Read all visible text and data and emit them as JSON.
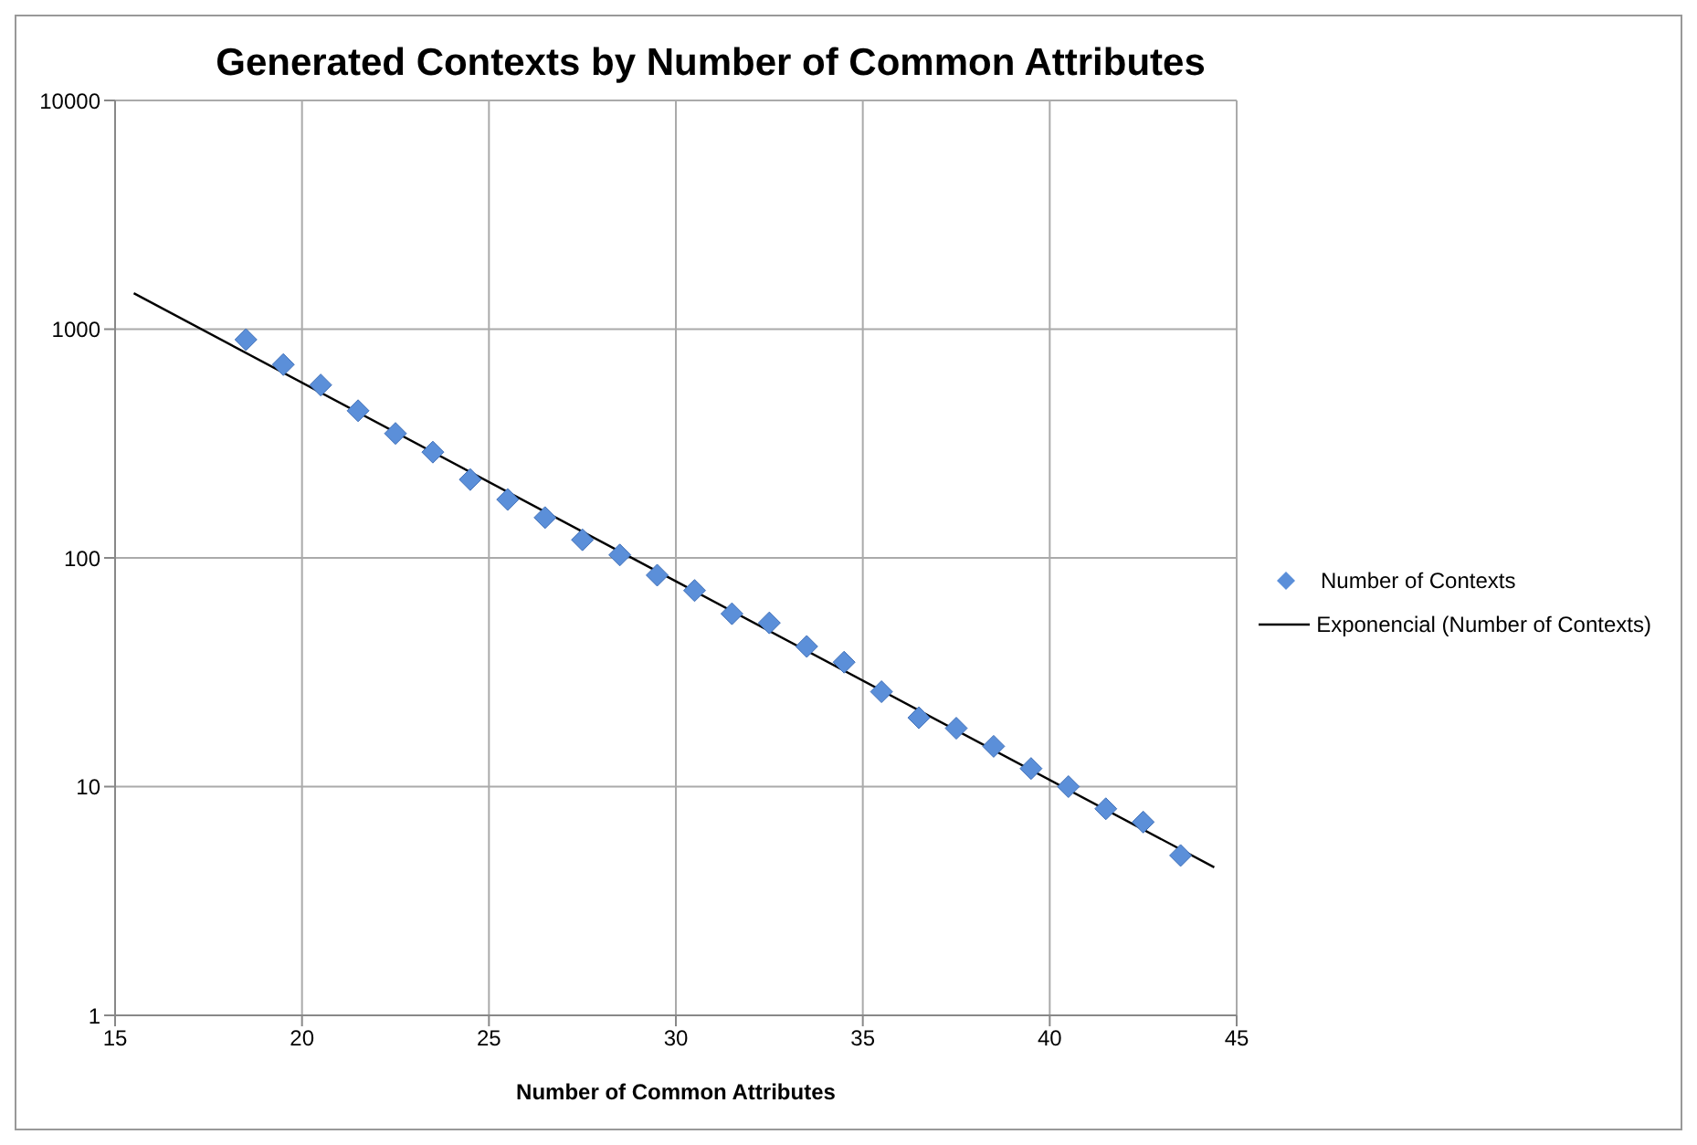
{
  "chart_data": {
    "type": "scatter",
    "title": "Generated Contexts by Number of Common Attributes",
    "xlabel": "Number of Common Attributes",
    "series": [
      {
        "name": "Number of Contexts",
        "color": "#5b8fd9",
        "marker": "diamond",
        "x": [
          18.5,
          19.5,
          20.5,
          21.5,
          22.5,
          23.5,
          24.5,
          25.5,
          26.5,
          27.5,
          28.5,
          29.5,
          30.5,
          31.5,
          32.5,
          33.5,
          34.5,
          35.5,
          36.5,
          37.5,
          38.5,
          39.5,
          40.5,
          41.5,
          42.5,
          43.5
        ],
        "values": [
          900,
          700,
          570,
          440,
          350,
          290,
          220,
          180,
          150,
          120,
          103,
          84,
          72,
          57,
          52,
          41,
          35,
          26,
          20,
          18,
          15,
          12,
          10,
          8,
          7,
          5
        ]
      },
      {
        "name": "Exponencial (Number of Contexts)",
        "type": "line",
        "color": "#000000",
        "marker": "none",
        "line_style": "solid",
        "x": [
          15.5,
          30,
          44.4
        ],
        "values": [
          1436,
          79,
          4.44
        ]
      }
    ],
    "xlim": [
      15,
      45
    ],
    "xticks": [
      15,
      20,
      25,
      30,
      35,
      40,
      45
    ],
    "ylim": [
      1,
      10000
    ],
    "yticks": [
      1,
      10,
      100,
      1000,
      10000
    ],
    "log": "y",
    "grid": true,
    "legend": "right"
  }
}
